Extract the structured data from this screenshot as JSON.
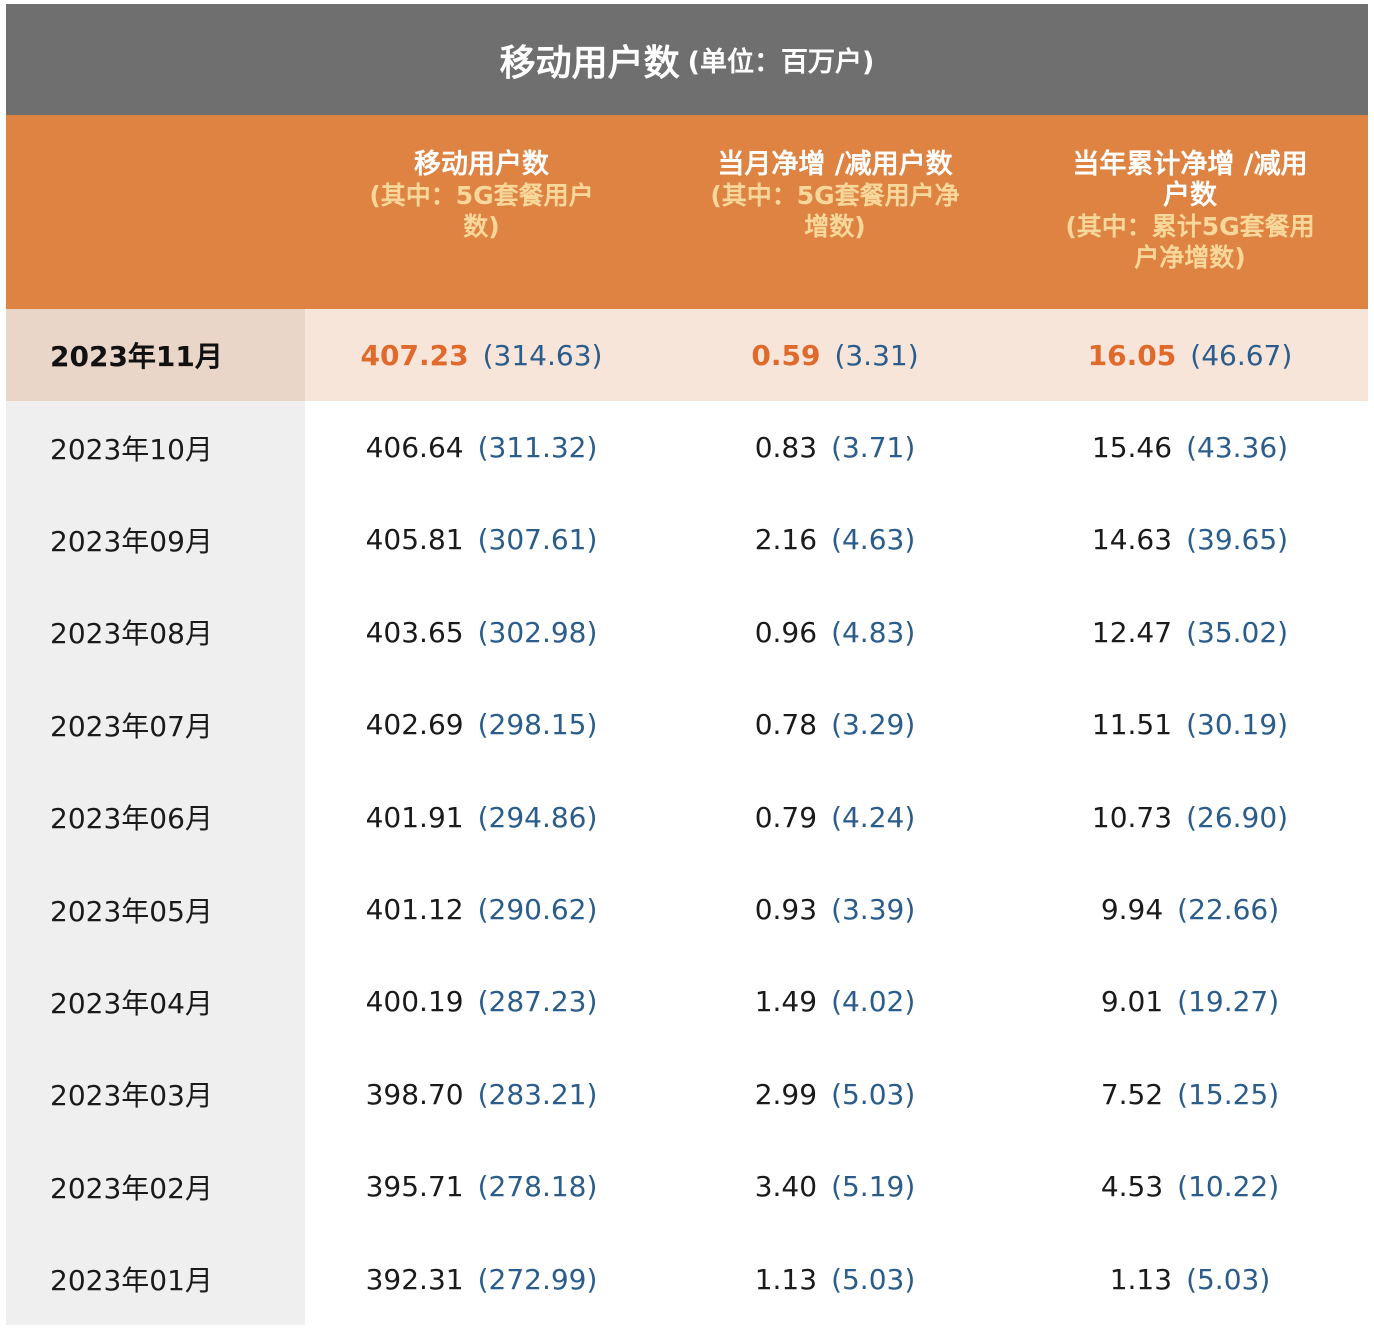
{
  "title": {
    "main": "移动用户数",
    "unit": "(单位：百万户)"
  },
  "headers": [
    {
      "main": "移动用户数",
      "sub": "(其中：5G套餐用户数)"
    },
    {
      "main": "当月净增 /减用户数",
      "sub": "(其中：5G套餐用户净增数)"
    },
    {
      "main": "当年累计净增 /减用户数",
      "sub": "(其中：累计5G套餐用户净增数)"
    }
  ],
  "rows": [
    {
      "month": "2023年11月",
      "total": "407.23",
      "total_5g": "(314.63)",
      "monthly": "0.59",
      "monthly_5g": "(3.31)",
      "ytd": "16.05",
      "ytd_5g": "(46.67)"
    },
    {
      "month": "2023年10月",
      "total": "406.64",
      "total_5g": "(311.32)",
      "monthly": "0.83",
      "monthly_5g": "(3.71)",
      "ytd": "15.46",
      "ytd_5g": "(43.36)"
    },
    {
      "month": "2023年09月",
      "total": "405.81",
      "total_5g": "(307.61)",
      "monthly": "2.16",
      "monthly_5g": "(4.63)",
      "ytd": "14.63",
      "ytd_5g": "(39.65)"
    },
    {
      "month": "2023年08月",
      "total": "403.65",
      "total_5g": "(302.98)",
      "monthly": "0.96",
      "monthly_5g": "(4.83)",
      "ytd": "12.47",
      "ytd_5g": "(35.02)"
    },
    {
      "month": "2023年07月",
      "total": "402.69",
      "total_5g": "(298.15)",
      "monthly": "0.78",
      "monthly_5g": "(3.29)",
      "ytd": "11.51",
      "ytd_5g": "(30.19)"
    },
    {
      "month": "2023年06月",
      "total": "401.91",
      "total_5g": "(294.86)",
      "monthly": "0.79",
      "monthly_5g": "(4.24)",
      "ytd": "10.73",
      "ytd_5g": "(26.90)"
    },
    {
      "month": "2023年05月",
      "total": "401.12",
      "total_5g": "(290.62)",
      "monthly": "0.93",
      "monthly_5g": "(3.39)",
      "ytd": "9.94",
      "ytd_5g": "(22.66)"
    },
    {
      "month": "2023年04月",
      "total": "400.19",
      "total_5g": "(287.23)",
      "monthly": "1.49",
      "monthly_5g": "(4.02)",
      "ytd": "9.01",
      "ytd_5g": "(19.27)"
    },
    {
      "month": "2023年03月",
      "total": "398.70",
      "total_5g": "(283.21)",
      "monthly": "2.99",
      "monthly_5g": "(5.03)",
      "ytd": "7.52",
      "ytd_5g": "(15.25)"
    },
    {
      "month": "2023年02月",
      "total": "395.71",
      "total_5g": "(278.18)",
      "monthly": "3.40",
      "monthly_5g": "(5.19)",
      "ytd": "4.53",
      "ytd_5g": "(10.22)"
    },
    {
      "month": "2023年01月",
      "total": "392.31",
      "total_5g": "(272.99)",
      "monthly": "1.13",
      "monthly_5g": "(5.03)",
      "ytd": "1.13",
      "ytd_5g": "(5.03)"
    }
  ],
  "colors": {
    "title_bg": "#6f6f6f",
    "header_bg": "#de8342",
    "header_sub_text": "#f8d79a",
    "highlight_row_bg": "#f7e5da",
    "highlight_value": "#e06a2c",
    "sub_value": "#2b5d8c",
    "label_col_bg": "#efefef"
  }
}
